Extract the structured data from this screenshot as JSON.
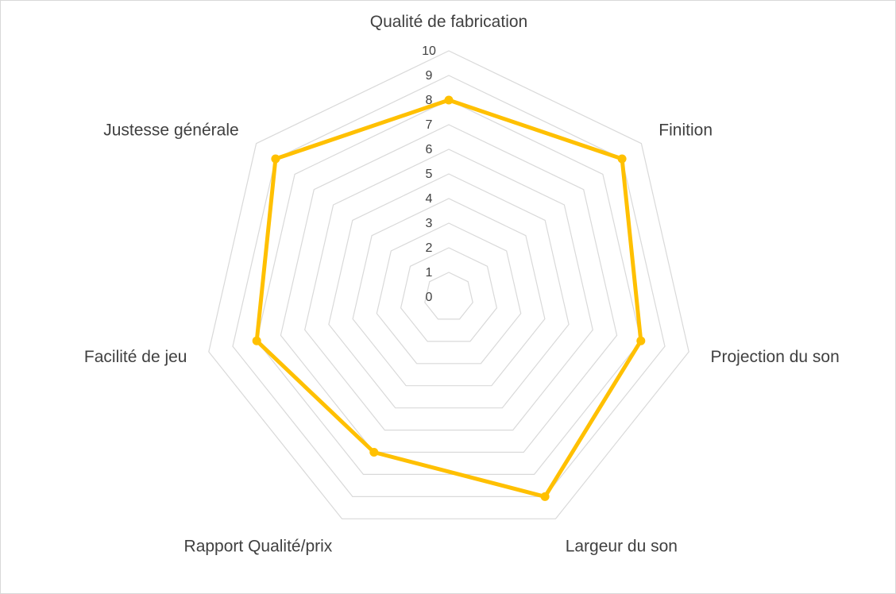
{
  "chart_data": {
    "type": "radar",
    "categories": [
      "Qualité de fabrication",
      "Finition",
      "Projection du son",
      "Largeur du son",
      "Rapport Qualité/prix",
      "Facilité de jeu",
      "Justesse générale"
    ],
    "series": [
      {
        "values": [
          8,
          9,
          8,
          9,
          7,
          8,
          9
        ],
        "color": "#FFC000"
      }
    ],
    "rlim": [
      0,
      10
    ],
    "ticks": [
      "0",
      "1",
      "2",
      "3",
      "4",
      "5",
      "6",
      "7",
      "8",
      "9",
      "10"
    ],
    "grid": true,
    "grid_color": "#D9D9D9",
    "legend": "none"
  }
}
